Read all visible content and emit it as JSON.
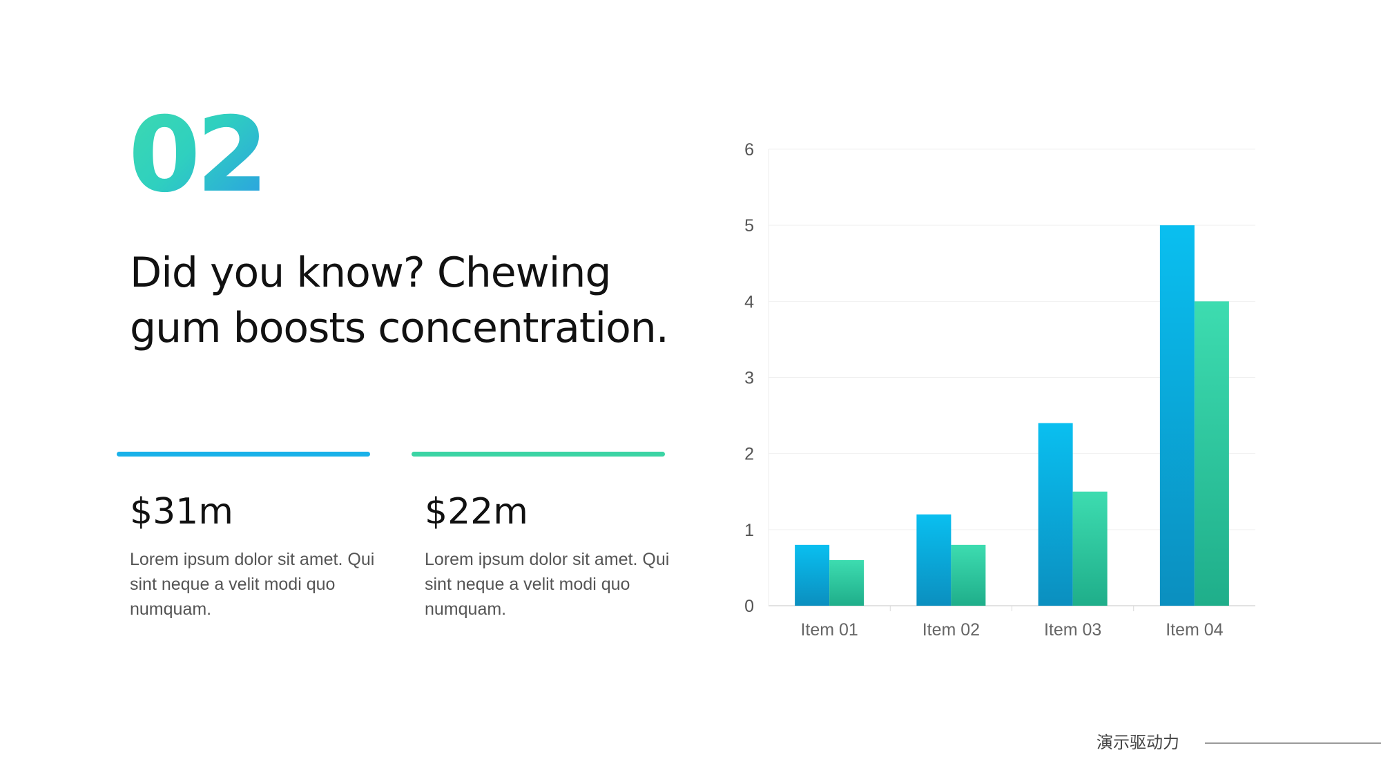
{
  "slide": {
    "number": "02",
    "headline": "Did you know? Chewing gum boosts concentration.",
    "stats": [
      {
        "value": "$31m",
        "description": "Lorem ipsum dolor sit amet. Qui sint neque a velit modi quo numquam."
      },
      {
        "value": "$22m",
        "description": "Lorem ipsum dolor sit amet. Qui sint neque a velit modi quo numquam."
      }
    ],
    "footer": {
      "brand": "演示驱动力"
    }
  },
  "colors": {
    "accent_blue": "#19b1e9",
    "accent_green": "#3bd4a4",
    "number_gradient": [
      "#3dd9b0",
      "#2b9fe3"
    ]
  },
  "chart_data": {
    "type": "bar",
    "categories": [
      "Item 01",
      "Item 02",
      "Item 03",
      "Item 04"
    ],
    "series": [
      {
        "values": [
          0.8,
          1.2,
          2.4,
          5.0
        ],
        "color_top": "#0abff0",
        "color_bottom": "#0b8fbf"
      },
      {
        "values": [
          0.6,
          0.8,
          1.5,
          4.0
        ],
        "color_top": "#3ddcb0",
        "color_bottom": "#1fae8a"
      }
    ],
    "ylim": [
      0,
      6
    ],
    "yticks": [
      0,
      1,
      2,
      3,
      4,
      5,
      6
    ],
    "grid": true,
    "legend": "none"
  }
}
